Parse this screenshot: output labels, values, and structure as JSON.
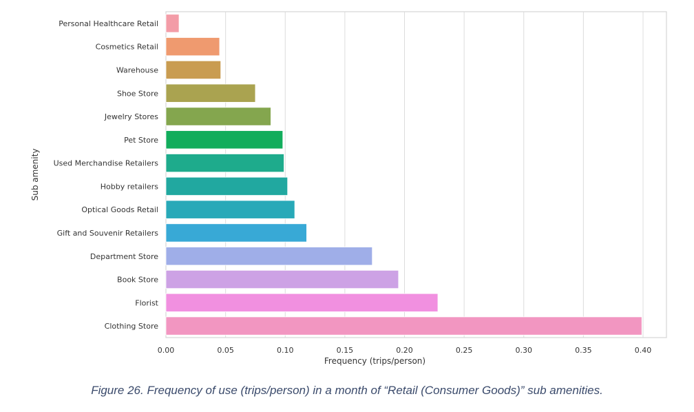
{
  "chart_data": {
    "type": "bar",
    "orientation": "horizontal",
    "title": "",
    "xlabel": "Frequency (trips/person)",
    "ylabel": "Sub amenity",
    "xlim": [
      0,
      0.42
    ],
    "xticks": [
      0.0,
      0.05,
      0.1,
      0.15,
      0.2,
      0.25,
      0.3,
      0.35,
      0.4
    ],
    "xtick_labels": [
      "0.00",
      "0.05",
      "0.10",
      "0.15",
      "0.20",
      "0.25",
      "0.30",
      "0.35",
      "0.40"
    ],
    "grid": "vertical",
    "legend": "none",
    "categories": [
      "Personal Healthcare Retail",
      "Cosmetics Retail",
      "Warehouse",
      "Shoe Store",
      "Jewelry Stores",
      "Pet Store",
      "Used Merchandise Retailers",
      "Hobby retailers",
      "Optical Goods Retail",
      "Gift and Souvenir Retailers",
      "Department Store",
      "Book Store",
      "Florist",
      "Clothing Store"
    ],
    "values": [
      0.011,
      0.045,
      0.046,
      0.075,
      0.088,
      0.098,
      0.099,
      0.102,
      0.108,
      0.118,
      0.173,
      0.195,
      0.228,
      0.399
    ],
    "colors": [
      "#f39ca7",
      "#ef9a6f",
      "#c99c51",
      "#aaa350",
      "#84a64e",
      "#12ad5c",
      "#1eab8c",
      "#21a8a0",
      "#28a9b8",
      "#38a9d6",
      "#9faee8",
      "#cda2e5",
      "#f190e0",
      "#f296c1"
    ]
  },
  "caption": "Figure 26. Frequency of use (trips/person) in a month of “Retail (Consumer Goods)” sub amenities."
}
